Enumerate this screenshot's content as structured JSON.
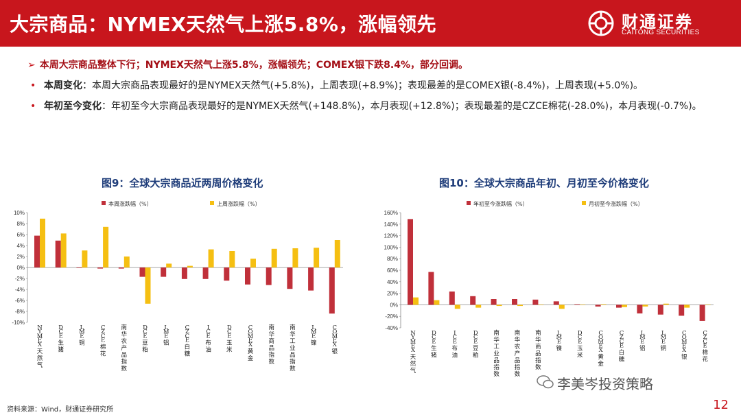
{
  "header": {
    "title": "大宗商品：NYMEX天然气上涨5.8%，涨幅领先",
    "logo_cn": "财通证券",
    "logo_en": "CAITONG SECURITIES"
  },
  "summary": {
    "arrow": "➢",
    "headline": "本周大宗商品整体下行；NYMEX天然气上涨5.8%，涨幅领先；COMEX银下跌8.4%，部分回调。",
    "bullets": [
      {
        "label": "本周变化",
        "text": "：本周大宗商品表现最好的是NYMEX天然气(+5.8%)，上周表现(+8.9%)；表现最差的是COMEX银(-8.4%)，上周表现(+5.0%)。"
      },
      {
        "label": "年初至今变化",
        "text": "：年初至今大宗商品表现最好的是NYMEX天然气(+148.8%)，本月表现(+12.8%)；表现最差的是CZCE棉花(-28.0%)，本月表现(-0.7%)。"
      }
    ]
  },
  "footer": {
    "source": "资料来源：Wind，财通证券研究所",
    "page_number": "12",
    "watermark": "李美岑投资策略"
  },
  "colors": {
    "brand_red": "#c8161d",
    "series_red": "#c0303a",
    "series_yellow": "#f5bf12",
    "title_blue": "#1f3d7a"
  },
  "chart_data": [
    {
      "type": "bar",
      "title": "图9：全球大宗商品近两周价格变化",
      "legend_position": "top",
      "categories": [
        "NYMEX天然气",
        "DCE生猪",
        "LME铜",
        "CZCE棉花",
        "南华农产品指数",
        "DCE豆粕",
        "LME铝",
        "CZCE白糖",
        "ICE布油",
        "DCE玉米",
        "COMEX黄金",
        "南华商品指数",
        "南华工业品指数",
        "LME镍",
        "COMEX银"
      ],
      "series": [
        {
          "name": "本周涨跌幅（%）",
          "values": [
            5.8,
            4.9,
            -0.1,
            -0.2,
            -0.2,
            -1.7,
            -1.7,
            -2.1,
            -2.1,
            -2.4,
            -3.1,
            -3.2,
            -3.9,
            -4.2,
            -8.4
          ]
        },
        {
          "name": "上周涨跌幅（%）",
          "values": [
            8.9,
            6.2,
            3.1,
            7.4,
            2.0,
            -6.6,
            0.7,
            0.3,
            3.3,
            3.0,
            1.6,
            3.4,
            3.5,
            3.6,
            5.0
          ]
        }
      ],
      "ylim": [
        -10,
        10
      ],
      "yticks": [
        "10%",
        "8%",
        "6%",
        "4%",
        "2%",
        "0%",
        "-2%",
        "-4%",
        "-6%",
        "-8%",
        "-10%"
      ]
    },
    {
      "type": "bar",
      "title": "图10：全球大宗商品年初、月初至今价格变化",
      "legend_position": "top",
      "categories": [
        "NYMEX天然气",
        "DCE生猪",
        "ICE布油",
        "DCE豆粕",
        "南华工业品指数",
        "南华农产品指数",
        "南华商品指数",
        "LME镍",
        "DCE玉米",
        "COMEX黄金",
        "CZCE白糖",
        "LME铝",
        "LME铜",
        "COMEX银",
        "CZCE棉花"
      ],
      "series": [
        {
          "name": "年初至今涨跌幅（%）",
          "values": [
            148.8,
            57,
            23,
            15,
            10,
            10,
            9,
            6,
            1,
            -3,
            -5,
            -15,
            -17,
            -19,
            -28.0
          ]
        },
        {
          "name": "月初至今涨跌幅（%）",
          "values": [
            12.8,
            8,
            -7,
            -5,
            -2,
            -2,
            0,
            -7,
            0,
            1,
            -4,
            -3,
            2,
            -5,
            -0.7
          ]
        }
      ],
      "ylim": [
        -40,
        160
      ],
      "yticks": [
        "160%",
        "140%",
        "120%",
        "100%",
        "80%",
        "60%",
        "40%",
        "20%",
        "0%",
        "-20%",
        "-40%"
      ]
    }
  ]
}
